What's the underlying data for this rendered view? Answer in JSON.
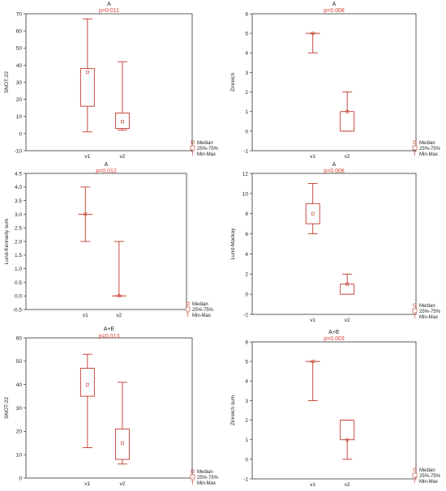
{
  "chart_data": [
    {
      "type": "boxplot",
      "title": "A",
      "subtitle": "p=0.011",
      "ylabel": "SNOT-22",
      "ylim": [
        -10,
        70
      ],
      "yticks": [
        -10,
        0,
        10,
        20,
        30,
        40,
        50,
        60,
        70
      ],
      "categories": [
        "v1",
        "v2"
      ],
      "boxes": [
        {
          "category": "v1",
          "min": 1,
          "q1": 16,
          "median": 36,
          "q3": 38,
          "max": 67
        },
        {
          "category": "v2",
          "min": 2,
          "q1": 3,
          "median": 7,
          "q3": 12,
          "max": 42
        }
      ],
      "legend": [
        "Median",
        "25%-75%",
        "Min-Max"
      ],
      "legend_position": "bottom-right",
      "grid": false
    },
    {
      "type": "boxplot",
      "title": "A",
      "subtitle": "p=0.008",
      "ylabel": "Zinreich",
      "ylim": [
        -1,
        6
      ],
      "yticks": [
        -1,
        0,
        1,
        2,
        3,
        4,
        5,
        6
      ],
      "categories": [
        "v1",
        "v2"
      ],
      "boxes": [
        {
          "category": "v1",
          "min": 4,
          "q1": 5,
          "median": 5,
          "q3": 5,
          "max": 5
        },
        {
          "category": "v2",
          "min": 0,
          "q1": 0,
          "median": 1,
          "q3": 1,
          "max": 2
        }
      ],
      "legend": [
        "Median",
        "25%-75%",
        "Min-Max"
      ],
      "legend_position": "bottom-right",
      "grid": false
    },
    {
      "type": "boxplot",
      "title": "A",
      "subtitle": "p=0.012",
      "ylabel": "Lund-Kennedy sum",
      "ylim": [
        -0.5,
        4.5
      ],
      "yticks": [
        -0.5,
        0.0,
        0.5,
        1.0,
        1.5,
        2.0,
        2.5,
        3.0,
        3.5,
        4.0,
        4.5
      ],
      "categories": [
        "v1",
        "v2"
      ],
      "boxes": [
        {
          "category": "v1",
          "min": 2,
          "q1": 3,
          "median": 3,
          "q3": 3,
          "max": 4
        },
        {
          "category": "v2",
          "min": 0,
          "q1": 0,
          "median": 0,
          "q3": 0,
          "max": 2
        }
      ],
      "legend": [
        "Median",
        "25%-75%",
        "Min-Max"
      ],
      "legend_position": "bottom-right",
      "grid": false
    },
    {
      "type": "boxplot",
      "title": "A",
      "subtitle": "p=0.008",
      "ylabel": "Lund-Mackay",
      "ylim": [
        -2,
        12
      ],
      "yticks": [
        -2,
        0,
        2,
        4,
        6,
        8,
        10,
        12
      ],
      "categories": [
        "v1",
        "v2"
      ],
      "boxes": [
        {
          "category": "v1",
          "min": 6,
          "q1": 7,
          "median": 8,
          "q3": 9,
          "max": 11
        },
        {
          "category": "v2",
          "min": 0,
          "q1": 0,
          "median": 1,
          "q3": 1,
          "max": 2
        }
      ],
      "legend": [
        "Median",
        "25%-75%",
        "Min-Max"
      ],
      "legend_position": "bottom-right",
      "grid": false
    },
    {
      "type": "boxplot",
      "title": "A+E",
      "subtitle": "p=0.013",
      "ylabel": "SNOT-22",
      "ylim": [
        0,
        60
      ],
      "yticks": [
        0,
        10,
        20,
        30,
        40,
        50,
        60
      ],
      "categories": [
        "v1",
        "v2"
      ],
      "boxes": [
        {
          "category": "v1",
          "min": 13,
          "q1": 35,
          "median": 40,
          "q3": 47,
          "max": 53
        },
        {
          "category": "v2",
          "min": 6,
          "q1": 8,
          "median": 15,
          "q3": 21,
          "max": 41
        }
      ],
      "legend": [
        "Median",
        "25%-75%",
        "Min-Max"
      ],
      "legend_position": "bottom-right",
      "grid": false
    },
    {
      "type": "boxplot",
      "title": "A+E",
      "subtitle": "p=0.003",
      "ylabel": "Zinreich sum",
      "ylim": [
        -1,
        6
      ],
      "yticks": [
        -1,
        0,
        1,
        2,
        3,
        4,
        5,
        6
      ],
      "categories": [
        "v1",
        "v2"
      ],
      "boxes": [
        {
          "category": "v1",
          "min": 3,
          "q1": 5,
          "median": 5,
          "q3": 5,
          "max": 5
        },
        {
          "category": "v2",
          "min": 0,
          "q1": 1,
          "median": 1,
          "q3": 2,
          "max": 2
        }
      ],
      "legend": [
        "Median",
        "25%-75%",
        "Min-Max"
      ],
      "legend_position": "bottom-right",
      "grid": false
    }
  ],
  "colors": {
    "box": "#c0392b",
    "p_value": "#e03c31",
    "axis": "#333333",
    "text": "#222222"
  }
}
